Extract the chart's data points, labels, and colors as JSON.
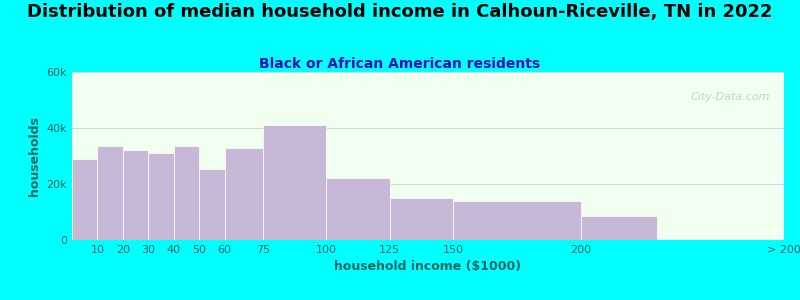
{
  "title": "Distribution of median household income in Calhoun-Riceville, TN in 2022",
  "subtitle": "Black or African American residents",
  "xlabel": "household income ($1000)",
  "ylabel": "households",
  "background_color": "#00FFFF",
  "plot_bg_color": "#f0fff0",
  "bar_color": "#c8b8d8",
  "bar_edge_color": "#ffffff",
  "bin_edges": [
    0,
    10,
    20,
    30,
    40,
    50,
    60,
    75,
    100,
    125,
    150,
    200,
    230,
    280
  ],
  "tick_positions": [
    10,
    20,
    30,
    40,
    50,
    60,
    75,
    100,
    125,
    150,
    200,
    280
  ],
  "tick_labels": [
    "10",
    "20",
    "30",
    "40",
    "50",
    "60",
    "75",
    "100",
    "125",
    "150",
    "200",
    "> 200"
  ],
  "values": [
    29000,
    33500,
    32000,
    31000,
    33500,
    25500,
    33000,
    41000,
    22000,
    15000,
    14000,
    8500
  ],
  "ylim": [
    0,
    60000
  ],
  "yticks": [
    0,
    20000,
    40000,
    60000
  ],
  "ytick_labels": [
    "0",
    "20k",
    "40k",
    "60k"
  ],
  "title_fontsize": 13,
  "subtitle_fontsize": 10,
  "axis_label_fontsize": 9,
  "tick_fontsize": 8,
  "title_color": "#000000",
  "subtitle_color": "#1111bb",
  "axis_label_color": "#006666",
  "tick_color": "#006666",
  "watermark_text": "City-Data.com",
  "grid_color": "#cccccc",
  "watermark_color": "#bbbbbb"
}
